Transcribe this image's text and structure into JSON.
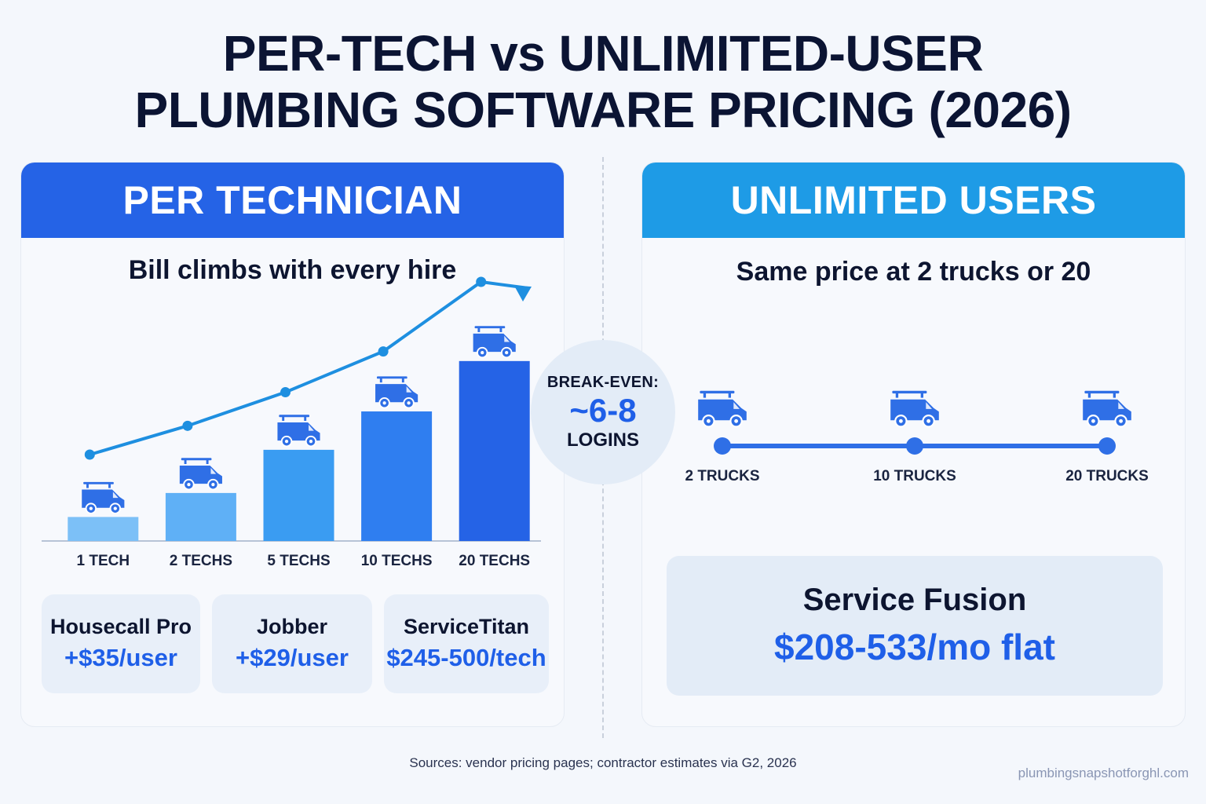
{
  "title": {
    "line1": "PER-TECH vs UNLIMITED-USER",
    "line2": "PLUMBING SOFTWARE PRICING (2026)"
  },
  "left_panel": {
    "header": "PER TECHNICIAN",
    "subtitle": "Bill climbs with every hire",
    "vendors": [
      {
        "name": "Housecall Pro",
        "price": "+$35/user"
      },
      {
        "name": "Jobber",
        "price": "+$29/user"
      },
      {
        "name": "ServiceTitan",
        "price": "$245-500/tech"
      }
    ]
  },
  "break_even": {
    "label": "BREAK-EVEN:",
    "value": "~6-8",
    "unit": "LOGINS"
  },
  "right_panel": {
    "header": "UNLIMITED USERS",
    "subtitle": "Same price at 2 trucks or 20",
    "truck_labels": [
      "2 TRUCKS",
      "10 TRUCKS",
      "20 TRUCKS"
    ],
    "product_name": "Service Fusion",
    "product_price": "$208-533/mo flat"
  },
  "footer": {
    "sources": "Sources: vendor pricing pages; contractor estimates via G2, 2026",
    "site": "plumbingsnapshotforghl.com"
  },
  "colors": {
    "per_tech_header": "#2563e6",
    "unlimited_header": "#1e9be6",
    "accent_blue": "#1f5fe8",
    "trend_line": "#1e8fe0",
    "bar_colors": [
      "#7cc0f7",
      "#5fb0f6",
      "#3a9cf2",
      "#2f7ef0",
      "#2563e6"
    ],
    "truck": "#2f6fe6"
  },
  "chart_data": [
    {
      "type": "bar",
      "categories": [
        "1 TECH",
        "2 TECHS",
        "5 TECHS",
        "10 TECHS",
        "20 TECHS"
      ],
      "values": [
        1,
        2,
        3.8,
        5.4,
        7.5
      ],
      "trend_line": [
        3.6,
        4.8,
        6.2,
        7.9,
        10.8
      ],
      "title": "",
      "xlabel": "",
      "ylabel": "",
      "icons": "van-icon"
    },
    {
      "type": "line",
      "categories": [
        "2 TRUCKS",
        "10 TRUCKS",
        "20 TRUCKS"
      ],
      "values": [
        1,
        1,
        1
      ],
      "title": "",
      "icons": "van-icon"
    }
  ]
}
